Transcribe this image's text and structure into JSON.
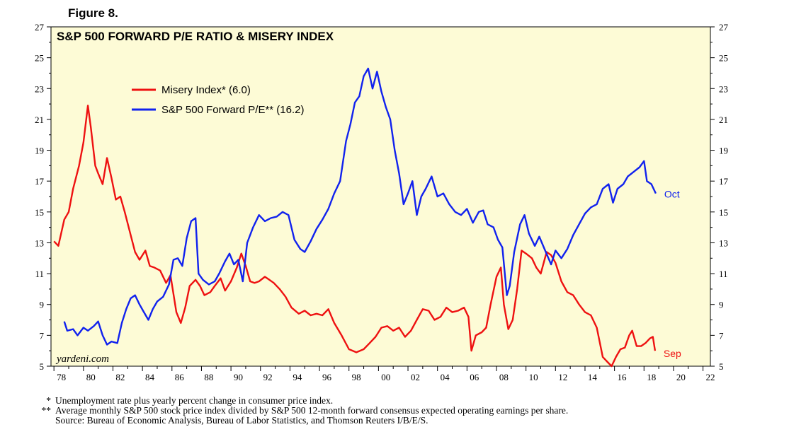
{
  "figure_label": "Figure 8.",
  "chart_data": {
    "type": "line",
    "title": "S&P 500 FORWARD P/E RATIO & MISERY INDEX",
    "watermark": "yardeni.com",
    "x_ticks": [
      "78",
      "80",
      "82",
      "84",
      "86",
      "88",
      "90",
      "92",
      "94",
      "96",
      "98",
      "00",
      "02",
      "04",
      "06",
      "08",
      "10",
      "12",
      "14",
      "16",
      "18",
      "20",
      "22"
    ],
    "x_range_years": [
      1977.8,
      2022.5
    ],
    "y_ticks": [
      5,
      7,
      9,
      11,
      13,
      15,
      17,
      19,
      21,
      23,
      25,
      27
    ],
    "ylim": [
      5,
      27
    ],
    "grid": false,
    "legend_placement": "top-left",
    "series": [
      {
        "name": "Misery Index* (6.0)",
        "color": "#ee1111",
        "end_label": "Sep",
        "points": [
          [
            1978.0,
            13.1
          ],
          [
            1978.3,
            12.8
          ],
          [
            1978.7,
            14.5
          ],
          [
            1979.0,
            15.0
          ],
          [
            1979.3,
            16.5
          ],
          [
            1979.7,
            18.0
          ],
          [
            1980.0,
            19.5
          ],
          [
            1980.3,
            21.9
          ],
          [
            1980.5,
            20.5
          ],
          [
            1980.8,
            18.0
          ],
          [
            1981.0,
            17.5
          ],
          [
            1981.3,
            16.8
          ],
          [
            1981.6,
            18.5
          ],
          [
            1981.9,
            17.2
          ],
          [
            1982.2,
            15.8
          ],
          [
            1982.5,
            16.0
          ],
          [
            1982.8,
            15.0
          ],
          [
            1983.2,
            13.5
          ],
          [
            1983.5,
            12.4
          ],
          [
            1983.8,
            11.9
          ],
          [
            1984.2,
            12.5
          ],
          [
            1984.5,
            11.5
          ],
          [
            1984.8,
            11.4
          ],
          [
            1985.2,
            11.2
          ],
          [
            1985.6,
            10.4
          ],
          [
            1985.9,
            10.9
          ],
          [
            1986.3,
            8.5
          ],
          [
            1986.6,
            7.8
          ],
          [
            1986.9,
            8.8
          ],
          [
            1987.2,
            10.2
          ],
          [
            1987.6,
            10.6
          ],
          [
            1987.9,
            10.2
          ],
          [
            1988.2,
            9.6
          ],
          [
            1988.6,
            9.8
          ],
          [
            1988.9,
            10.2
          ],
          [
            1989.3,
            10.7
          ],
          [
            1989.6,
            9.9
          ],
          [
            1990.0,
            10.5
          ],
          [
            1990.4,
            11.4
          ],
          [
            1990.7,
            12.3
          ],
          [
            1991.0,
            11.5
          ],
          [
            1991.3,
            10.5
          ],
          [
            1991.6,
            10.4
          ],
          [
            1991.9,
            10.5
          ],
          [
            1992.3,
            10.8
          ],
          [
            1992.6,
            10.6
          ],
          [
            1992.9,
            10.4
          ],
          [
            1993.3,
            10.0
          ],
          [
            1993.7,
            9.5
          ],
          [
            1994.1,
            8.8
          ],
          [
            1994.6,
            8.4
          ],
          [
            1995.0,
            8.6
          ],
          [
            1995.4,
            8.3
          ],
          [
            1995.8,
            8.4
          ],
          [
            1996.2,
            8.3
          ],
          [
            1996.6,
            8.7
          ],
          [
            1997.0,
            7.8
          ],
          [
            1997.5,
            7.0
          ],
          [
            1998.0,
            6.1
          ],
          [
            1998.5,
            5.9
          ],
          [
            1999.0,
            6.1
          ],
          [
            1999.4,
            6.5
          ],
          [
            1999.8,
            6.9
          ],
          [
            2000.2,
            7.5
          ],
          [
            2000.6,
            7.6
          ],
          [
            2001.0,
            7.3
          ],
          [
            2001.4,
            7.5
          ],
          [
            2001.8,
            6.9
          ],
          [
            2002.2,
            7.3
          ],
          [
            2002.6,
            8.0
          ],
          [
            2003.0,
            8.7
          ],
          [
            2003.4,
            8.6
          ],
          [
            2003.8,
            8.0
          ],
          [
            2004.2,
            8.2
          ],
          [
            2004.6,
            8.8
          ],
          [
            2005.0,
            8.5
          ],
          [
            2005.4,
            8.6
          ],
          [
            2005.8,
            8.8
          ],
          [
            2006.1,
            8.2
          ],
          [
            2006.3,
            6.0
          ],
          [
            2006.6,
            7.0
          ],
          [
            2007.0,
            7.2
          ],
          [
            2007.3,
            7.5
          ],
          [
            2007.6,
            9.0
          ],
          [
            2008.0,
            10.8
          ],
          [
            2008.3,
            11.4
          ],
          [
            2008.5,
            9.0
          ],
          [
            2008.8,
            7.4
          ],
          [
            2009.1,
            8.0
          ],
          [
            2009.4,
            10.0
          ],
          [
            2009.7,
            12.5
          ],
          [
            2010.0,
            12.3
          ],
          [
            2010.4,
            12.0
          ],
          [
            2010.7,
            11.4
          ],
          [
            2011.0,
            11.0
          ],
          [
            2011.4,
            12.4
          ],
          [
            2011.7,
            12.2
          ],
          [
            2012.0,
            11.7
          ],
          [
            2012.4,
            10.5
          ],
          [
            2012.8,
            9.8
          ],
          [
            2013.2,
            9.6
          ],
          [
            2013.6,
            9.0
          ],
          [
            2014.0,
            8.5
          ],
          [
            2014.4,
            8.3
          ],
          [
            2014.8,
            7.5
          ],
          [
            2015.2,
            5.6
          ],
          [
            2015.5,
            5.3
          ],
          [
            2015.8,
            5.0
          ],
          [
            2016.1,
            5.6
          ],
          [
            2016.4,
            6.1
          ],
          [
            2016.7,
            6.2
          ],
          [
            2017.0,
            7.0
          ],
          [
            2017.2,
            7.3
          ],
          [
            2017.5,
            6.3
          ],
          [
            2017.8,
            6.3
          ],
          [
            2018.1,
            6.5
          ],
          [
            2018.4,
            6.8
          ],
          [
            2018.6,
            6.9
          ],
          [
            2018.75,
            6.0
          ]
        ]
      },
      {
        "name": "S&P 500 Forward P/E** (16.2)",
        "color": "#1122ee",
        "end_label": "Oct",
        "points": [
          [
            1978.7,
            7.9
          ],
          [
            1978.9,
            7.3
          ],
          [
            1979.3,
            7.4
          ],
          [
            1979.6,
            7.0
          ],
          [
            1980.0,
            7.5
          ],
          [
            1980.3,
            7.3
          ],
          [
            1980.7,
            7.6
          ],
          [
            1981.0,
            7.9
          ],
          [
            1981.3,
            7.0
          ],
          [
            1981.6,
            6.4
          ],
          [
            1981.9,
            6.6
          ],
          [
            1982.3,
            6.5
          ],
          [
            1982.6,
            7.8
          ],
          [
            1982.9,
            8.7
          ],
          [
            1983.2,
            9.4
          ],
          [
            1983.5,
            9.6
          ],
          [
            1983.8,
            9.0
          ],
          [
            1984.1,
            8.5
          ],
          [
            1984.4,
            8.0
          ],
          [
            1984.7,
            8.7
          ],
          [
            1985.0,
            9.2
          ],
          [
            1985.4,
            9.5
          ],
          [
            1985.8,
            10.3
          ],
          [
            1986.1,
            11.9
          ],
          [
            1986.4,
            12.0
          ],
          [
            1986.7,
            11.5
          ],
          [
            1987.0,
            13.3
          ],
          [
            1987.3,
            14.4
          ],
          [
            1987.6,
            14.6
          ],
          [
            1987.8,
            11.0
          ],
          [
            1988.1,
            10.6
          ],
          [
            1988.5,
            10.3
          ],
          [
            1988.9,
            10.5
          ],
          [
            1989.2,
            11.0
          ],
          [
            1989.6,
            11.8
          ],
          [
            1989.9,
            12.3
          ],
          [
            1990.2,
            11.6
          ],
          [
            1990.5,
            11.9
          ],
          [
            1990.8,
            10.5
          ],
          [
            1991.1,
            13.0
          ],
          [
            1991.5,
            14.0
          ],
          [
            1991.9,
            14.8
          ],
          [
            1992.3,
            14.4
          ],
          [
            1992.7,
            14.6
          ],
          [
            1993.1,
            14.7
          ],
          [
            1993.5,
            15.0
          ],
          [
            1993.9,
            14.8
          ],
          [
            1994.3,
            13.2
          ],
          [
            1994.7,
            12.6
          ],
          [
            1995.0,
            12.4
          ],
          [
            1995.4,
            13.1
          ],
          [
            1995.8,
            13.9
          ],
          [
            1996.2,
            14.5
          ],
          [
            1996.6,
            15.2
          ],
          [
            1997.0,
            16.2
          ],
          [
            1997.4,
            17.0
          ],
          [
            1997.8,
            19.6
          ],
          [
            1998.1,
            20.7
          ],
          [
            1998.4,
            22.1
          ],
          [
            1998.7,
            22.5
          ],
          [
            1999.0,
            23.8
          ],
          [
            1999.3,
            24.3
          ],
          [
            1999.6,
            23.0
          ],
          [
            1999.9,
            24.1
          ],
          [
            2000.2,
            22.8
          ],
          [
            2000.5,
            21.8
          ],
          [
            2000.8,
            21.0
          ],
          [
            2001.1,
            19.0
          ],
          [
            2001.4,
            17.5
          ],
          [
            2001.7,
            15.5
          ],
          [
            2002.0,
            16.2
          ],
          [
            2002.3,
            17.0
          ],
          [
            2002.6,
            14.8
          ],
          [
            2002.9,
            16.0
          ],
          [
            2003.2,
            16.5
          ],
          [
            2003.6,
            17.3
          ],
          [
            2004.0,
            16.0
          ],
          [
            2004.4,
            16.2
          ],
          [
            2004.8,
            15.5
          ],
          [
            2005.2,
            15.0
          ],
          [
            2005.6,
            14.8
          ],
          [
            2006.0,
            15.2
          ],
          [
            2006.4,
            14.3
          ],
          [
            2006.8,
            15.0
          ],
          [
            2007.1,
            15.1
          ],
          [
            2007.4,
            14.2
          ],
          [
            2007.8,
            14.0
          ],
          [
            2008.1,
            13.2
          ],
          [
            2008.4,
            12.7
          ],
          [
            2008.7,
            9.6
          ],
          [
            2008.9,
            10.2
          ],
          [
            2009.2,
            12.4
          ],
          [
            2009.6,
            14.2
          ],
          [
            2009.9,
            14.8
          ],
          [
            2010.2,
            13.6
          ],
          [
            2010.6,
            12.8
          ],
          [
            2010.9,
            13.4
          ],
          [
            2011.3,
            12.5
          ],
          [
            2011.7,
            11.6
          ],
          [
            2012.0,
            12.5
          ],
          [
            2012.4,
            12.0
          ],
          [
            2012.8,
            12.6
          ],
          [
            2013.2,
            13.5
          ],
          [
            2013.6,
            14.2
          ],
          [
            2014.0,
            14.9
          ],
          [
            2014.4,
            15.3
          ],
          [
            2014.8,
            15.5
          ],
          [
            2015.2,
            16.5
          ],
          [
            2015.6,
            16.8
          ],
          [
            2015.9,
            15.6
          ],
          [
            2016.2,
            16.5
          ],
          [
            2016.6,
            16.8
          ],
          [
            2016.9,
            17.3
          ],
          [
            2017.3,
            17.6
          ],
          [
            2017.7,
            17.9
          ],
          [
            2018.0,
            18.3
          ],
          [
            2018.2,
            17.0
          ],
          [
            2018.5,
            16.8
          ],
          [
            2018.8,
            16.2
          ]
        ]
      }
    ]
  },
  "footnotes": [
    {
      "mark": "*",
      "text": "Unemployment rate plus yearly percent change in consumer price index."
    },
    {
      "mark": "**",
      "text": "Average monthly S&P 500 stock price index divided by S&P 500 12-month forward consensus expected operating earnings per share."
    },
    {
      "mark": "",
      "text": "Source: Bureau of Economic Analysis, Bureau of Labor Statistics, and Thomson Reuters I/B/E/S."
    }
  ]
}
